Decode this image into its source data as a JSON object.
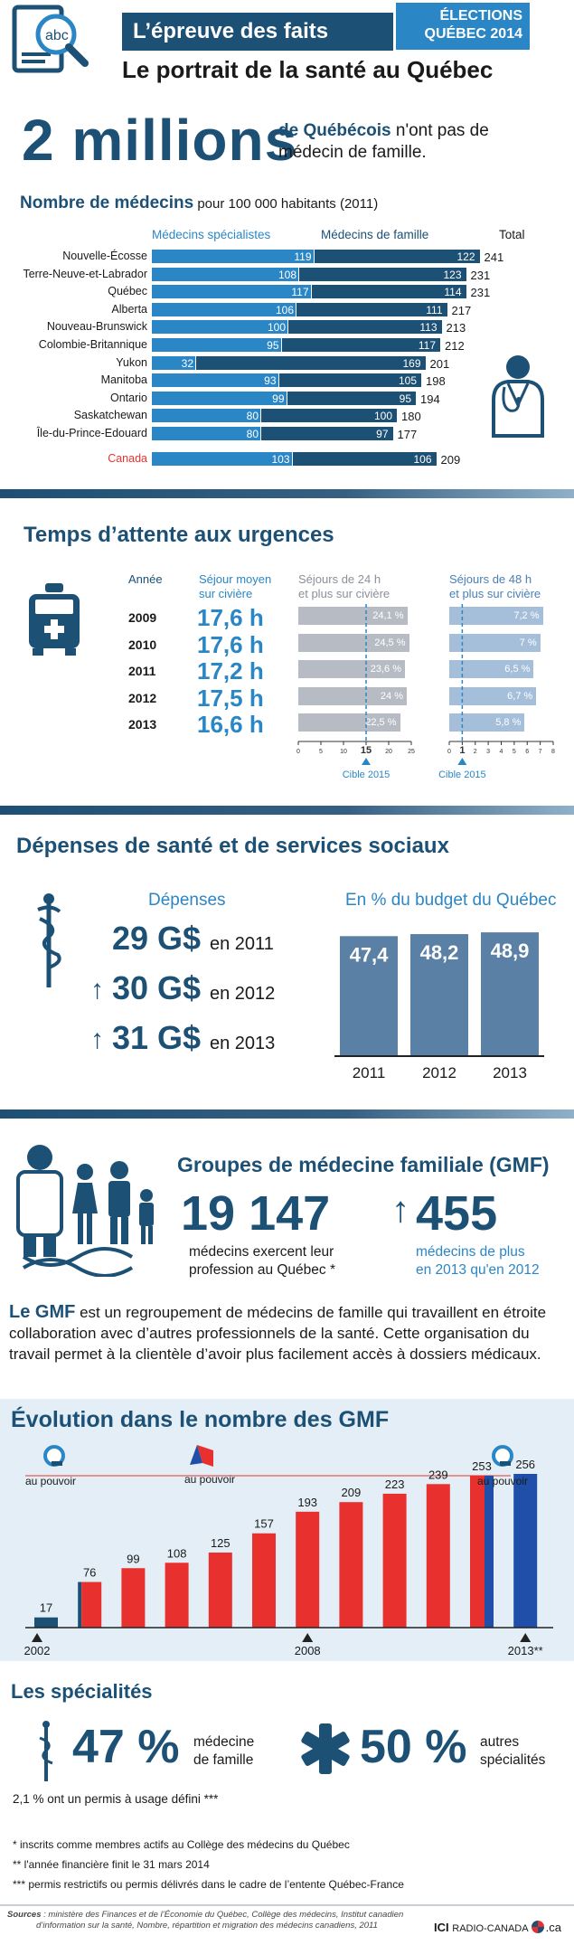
{
  "header": {
    "series_title": "L’épreuve des faits",
    "badge_line1": "ÉLECTIONS",
    "badge_line2": "QUÉBEC 2014",
    "main_title": "Le portrait de la santé au Québec",
    "doc_icon_text": "abc"
  },
  "headline": {
    "number": "2 millions",
    "highlight": "de Québécois",
    "rest": " n'ont pas de médecin de famille."
  },
  "doctors": {
    "title": "Nombre de médecins",
    "subtitle": " pour 100 000 habitants (2011)",
    "col_specialists": "Médecins spécialistes",
    "col_family": "Médecins de famille",
    "col_total": "Total"
  },
  "wait": {
    "title": "Temps d’attente aux urgences",
    "col_year": "Année",
    "col_stay_l1": "Séjour moyen",
    "col_stay_l2": "sur civière",
    "col_24_l1": "Séjours de 24 h",
    "col_24_l2": "et plus sur civière",
    "col_48_l1": "Séjours de 48 h",
    "col_48_l2": "et plus sur civière",
    "target_label": "Cible 2015"
  },
  "spending": {
    "title": "Dépenses de santé et de services sociaux",
    "col_spending": "Dépenses",
    "col_budget": "En % du budget du Québec",
    "rows": [
      {
        "amount": "29 G$",
        "year": "en 2011",
        "arrow": ""
      },
      {
        "amount": "30 G$",
        "year": "en 2012",
        "arrow": "↑"
      },
      {
        "amount": "31 G$",
        "year": "en 2013",
        "arrow": "↑"
      }
    ]
  },
  "gmf": {
    "title": "Groupes de médecine familiale (GMF)",
    "stat1_value": "19 147",
    "stat1_desc_l1": "médecins exercent leur",
    "stat1_desc_l2": "profession au Québec *",
    "stat2_value": "455",
    "stat2_desc_l1": "médecins de plus",
    "stat2_desc_l2": "en 2013 qu'en 2012",
    "desc_strong": "Le GMF",
    "desc_rest": " est un regroupement de médecins de famille qui travaillent en étroite collaboration avec d’autres professionnels de la santé. Cette organisation du travail permet à la clientèle d’avoir plus facilement accès à dossiers médicaux."
  },
  "evolution": {
    "title": "Évolution dans le nombre des GMF",
    "power_label": "au pouvoir",
    "year_2002": "2002",
    "year_2008": "2008",
    "year_2013": "2013**"
  },
  "specialties": {
    "title": "Les spécialités",
    "pct1": "47 %",
    "pct1_l1": "médecine",
    "pct1_l2": "de famille",
    "pct2": "50 %",
    "pct2_l1": "autres",
    "pct2_l2": "spécialités",
    "note": "2,1 % ont un permis à usage défini ***"
  },
  "footnotes": {
    "f1": "* inscrits comme membres actifs au Collège des médecins du Québec",
    "f2": "** l'année financière finit le 31 mars 2014",
    "f3": "*** permis restrictifs ou permis délivrés dans le cadre de l’entente Québec-France",
    "sources_label": "Sources",
    "sources_l1": " : ministère des Finances et de l’Économie du Québec, Collège des médecins, Institut canadien",
    "sources_l2": "d’information sur la santé, Nombre, répartition et migration des médecins canadiens, 2011",
    "brand_ici": "ICI",
    "brand_radio": "RADIO-CANADA",
    "brand_ca": ".ca"
  },
  "colors": {
    "navy": "#1d5075",
    "light_blue": "#2b86c5",
    "red": "#e8312f",
    "gray_bar": "#b7bcc4",
    "light_bar": "#a5bfdb",
    "spending_bar": "#5b80a5"
  },
  "chart_data": [
    {
      "type": "bar",
      "stacked": true,
      "orientation": "horizontal",
      "title": "Nombre de médecins pour 100 000 habitants (2011)",
      "categories": [
        "Nouvelle-Écosse",
        "Terre-Neuve-et-Labrador",
        "Québec",
        "Alberta",
        "Nouveau-Brunswick",
        "Colombie-Britannique",
        "Yukon",
        "Manitoba",
        "Ontario",
        "Saskatchewan",
        "Île-du-Prince-Edouard",
        "Canada"
      ],
      "series": [
        {
          "name": "Médecins spécialistes",
          "values": [
            119,
            108,
            117,
            106,
            100,
            95,
            32,
            93,
            99,
            80,
            80,
            103
          ]
        },
        {
          "name": "Médecins de famille",
          "values": [
            122,
            123,
            114,
            111,
            113,
            117,
            169,
            105,
            95,
            100,
            97,
            106
          ]
        }
      ],
      "totals": [
        241,
        231,
        231,
        217,
        213,
        212,
        201,
        198,
        194,
        180,
        177,
        209
      ]
    },
    {
      "type": "table",
      "title": "Temps d’attente aux urgences",
      "years": [
        "2009",
        "2010",
        "2011",
        "2012",
        "2013"
      ],
      "stay_avg": [
        "17,6 h",
        "17,6 h",
        "17,2 h",
        "17,5 h",
        "16,6 h"
      ],
      "pct_24h": [
        24.1,
        24.5,
        23.6,
        24,
        22.5
      ],
      "pct_24h_labels": [
        "24,1 %",
        "24,5 %",
        "23,6 %",
        "24 %",
        "22,5 %"
      ],
      "pct_48h": [
        7.2,
        7,
        6.5,
        6.7,
        5.8
      ],
      "pct_48h_labels": [
        "7,2 %",
        "7 %",
        "6,5 %",
        "6,7 %",
        "5,8 %"
      ],
      "axis_24h": {
        "ticks": [
          "0",
          "5",
          "10",
          "15",
          "20",
          "25"
        ],
        "max": 25,
        "target": 15
      },
      "axis_48h": {
        "ticks": [
          "0",
          "1",
          "2",
          "3",
          "4",
          "5",
          "6",
          "7",
          "8"
        ],
        "max": 8,
        "target": 1
      }
    },
    {
      "type": "bar",
      "title": "En % du budget du Québec",
      "categories": [
        "2011",
        "2012",
        "2013"
      ],
      "values": [
        47.4,
        48.2,
        48.9
      ],
      "labels": [
        "47,4",
        "48,2",
        "48,9"
      ]
    },
    {
      "type": "bar",
      "title": "Évolution dans le nombre des GMF",
      "values": [
        17,
        76,
        99,
        108,
        125,
        157,
        193,
        209,
        223,
        239,
        253,
        256
      ],
      "labels": [
        "17",
        "76",
        "99",
        "108",
        "125",
        "157",
        "193",
        "209",
        "223",
        "239",
        "253",
        "256"
      ],
      "ylim": [
        0,
        270
      ]
    }
  ]
}
